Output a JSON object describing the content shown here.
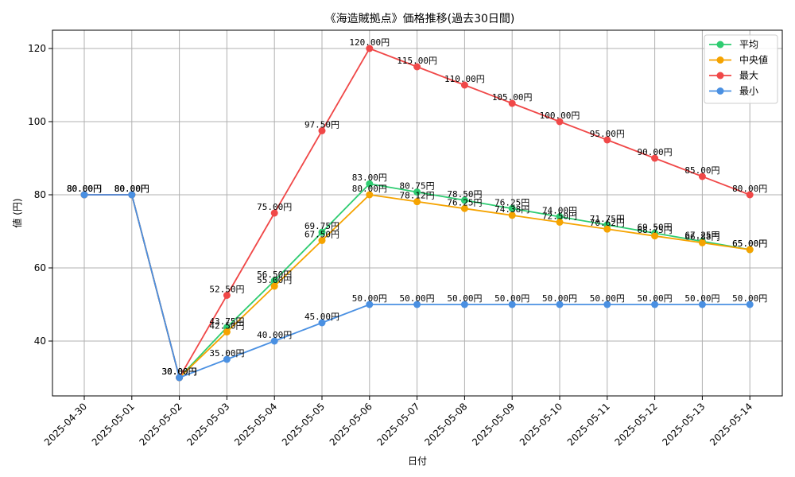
{
  "chart_data": {
    "type": "line",
    "title": "《海造賊拠点》価格推移(過去30日間)",
    "xlabel": "日付",
    "ylabel": "値 (円)",
    "ylim": [
      25,
      125
    ],
    "yticks": [
      40,
      60,
      80,
      100,
      120
    ],
    "grid": true,
    "legend_position": "top-right",
    "unit_suffix": "円",
    "categories": [
      "2025-04-30",
      "2025-05-01",
      "2025-05-02",
      "2025-05-03",
      "2025-05-04",
      "2025-05-05",
      "2025-05-06",
      "2025-05-07",
      "2025-05-08",
      "2025-05-09",
      "2025-05-10",
      "2025-05-11",
      "2025-05-12",
      "2025-05-13",
      "2025-05-14"
    ],
    "series": [
      {
        "name": "平均",
        "color": "#2ecc71",
        "values": [
          80.0,
          80.0,
          30.0,
          43.75,
          56.5,
          69.75,
          83.0,
          80.75,
          78.5,
          76.25,
          74.0,
          71.75,
          69.5,
          67.25,
          65.0
        ]
      },
      {
        "name": "中央値",
        "color": "#f5a300",
        "values": [
          80.0,
          80.0,
          30.0,
          42.5,
          55.0,
          67.5,
          80.0,
          78.12,
          76.25,
          74.38,
          72.5,
          70.62,
          68.75,
          66.88,
          65.0
        ]
      },
      {
        "name": "最大",
        "color": "#f04848",
        "values": [
          80.0,
          80.0,
          30.0,
          52.5,
          75.0,
          97.5,
          120.0,
          115.0,
          110.0,
          105.0,
          100.0,
          95.0,
          90.0,
          85.0,
          80.0
        ]
      },
      {
        "name": "最小",
        "color": "#4a90e2",
        "values": [
          80.0,
          80.0,
          30.0,
          35.0,
          40.0,
          45.0,
          50.0,
          50.0,
          50.0,
          50.0,
          50.0,
          50.0,
          50.0,
          50.0,
          50.0
        ]
      }
    ]
  }
}
